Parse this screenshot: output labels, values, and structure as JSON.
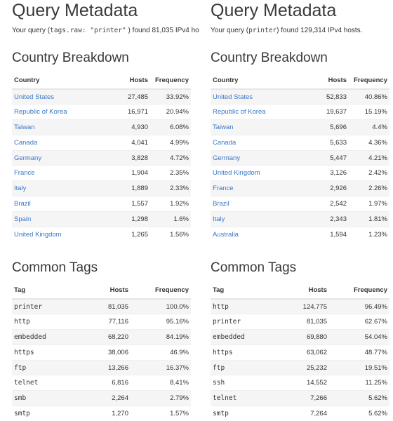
{
  "left": {
    "title": "Query Metadata",
    "summary_prefix": "Your query (",
    "query": "tags.raw: \"printer\"",
    "summary_suffix": " ) found 81,035 IPv4 ho",
    "country_heading": "Country Breakdown",
    "country_headers": [
      "Country",
      "Hosts",
      "Frequency"
    ],
    "countries": [
      {
        "name": "United States",
        "hosts": "27,485",
        "freq": "33.92%"
      },
      {
        "name": "Republic of Korea",
        "hosts": "16,971",
        "freq": "20.94%"
      },
      {
        "name": "Taiwan",
        "hosts": "4,930",
        "freq": "6.08%"
      },
      {
        "name": "Canada",
        "hosts": "4,041",
        "freq": "4.99%"
      },
      {
        "name": "Germany",
        "hosts": "3,828",
        "freq": "4.72%"
      },
      {
        "name": "France",
        "hosts": "1,904",
        "freq": "2.35%"
      },
      {
        "name": "Italy",
        "hosts": "1,889",
        "freq": "2.33%"
      },
      {
        "name": "Brazil",
        "hosts": "1,557",
        "freq": "1.92%"
      },
      {
        "name": "Spain",
        "hosts": "1,298",
        "freq": "1.6%"
      },
      {
        "name": "United Kingdom",
        "hosts": "1,265",
        "freq": "1.56%"
      }
    ],
    "tags_heading": "Common Tags",
    "tag_headers": [
      "Tag",
      "Hosts",
      "Frequency"
    ],
    "tags": [
      {
        "name": "printer",
        "hosts": "81,035",
        "freq": "100.0%"
      },
      {
        "name": "http",
        "hosts": "77,116",
        "freq": "95.16%"
      },
      {
        "name": "embedded",
        "hosts": "68,220",
        "freq": "84.19%"
      },
      {
        "name": "https",
        "hosts": "38,006",
        "freq": "46.9%"
      },
      {
        "name": "ftp",
        "hosts": "13,266",
        "freq": "16.37%"
      },
      {
        "name": "telnet",
        "hosts": "6,816",
        "freq": "8.41%"
      },
      {
        "name": "smb",
        "hosts": "2,264",
        "freq": "2.79%"
      },
      {
        "name": "smtp",
        "hosts": "1,270",
        "freq": "1.57%"
      }
    ]
  },
  "right": {
    "title": "Query Metadata",
    "summary_prefix": "Your query (",
    "query": "printer",
    "summary_suffix": ") found 129,314 IPv4 hosts.",
    "country_heading": "Country Breakdown",
    "country_headers": [
      "Country",
      "Hosts",
      "Frequency"
    ],
    "countries": [
      {
        "name": "United States",
        "hosts": "52,833",
        "freq": "40.86%"
      },
      {
        "name": "Republic of Korea",
        "hosts": "19,637",
        "freq": "15.19%"
      },
      {
        "name": "Taiwan",
        "hosts": "5,696",
        "freq": "4.4%"
      },
      {
        "name": "Canada",
        "hosts": "5,633",
        "freq": "4.36%"
      },
      {
        "name": "Germany",
        "hosts": "5,447",
        "freq": "4.21%"
      },
      {
        "name": "United Kingdom",
        "hosts": "3,126",
        "freq": "2.42%"
      },
      {
        "name": "France",
        "hosts": "2,926",
        "freq": "2.26%"
      },
      {
        "name": "Brazil",
        "hosts": "2,542",
        "freq": "1.97%"
      },
      {
        "name": "Italy",
        "hosts": "2,343",
        "freq": "1.81%"
      },
      {
        "name": "Australia",
        "hosts": "1,594",
        "freq": "1.23%"
      }
    ],
    "tags_heading": "Common Tags",
    "tag_headers": [
      "Tag",
      "Hosts",
      "Frequency"
    ],
    "tags": [
      {
        "name": "http",
        "hosts": "124,775",
        "freq": "96.49%"
      },
      {
        "name": "printer",
        "hosts": "81,035",
        "freq": "62.67%"
      },
      {
        "name": "embedded",
        "hosts": "69,880",
        "freq": "54.04%"
      },
      {
        "name": "https",
        "hosts": "63,062",
        "freq": "48.77%"
      },
      {
        "name": "ftp",
        "hosts": "25,232",
        "freq": "19.51%"
      },
      {
        "name": "ssh",
        "hosts": "14,552",
        "freq": "11.25%"
      },
      {
        "name": "telnet",
        "hosts": "7,266",
        "freq": "5.62%"
      },
      {
        "name": "smtp",
        "hosts": "7,264",
        "freq": "5.62%"
      }
    ]
  }
}
